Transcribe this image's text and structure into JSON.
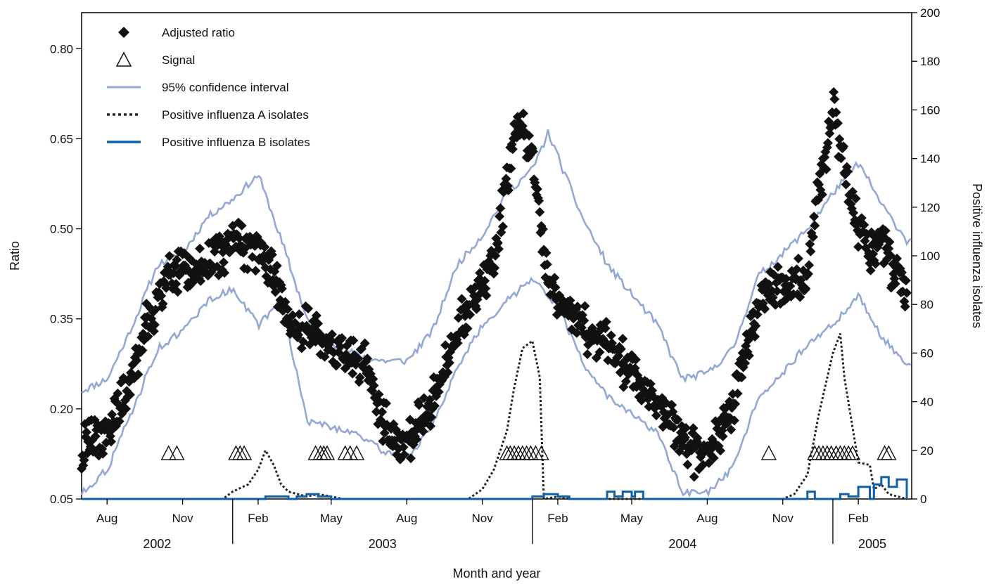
{
  "chart_data": {
    "type": "scatter",
    "xlabel": "Month and year",
    "ylabel": "Ratio",
    "ylabel_right": "Positive influenza isolates",
    "ylim": [
      0.05,
      0.86
    ],
    "ylim_right": [
      0,
      200
    ],
    "y_ticks": [
      "0.05",
      "0.20",
      "0.35",
      "0.50",
      "0.65",
      "0.80"
    ],
    "y_right_ticks": [
      "0",
      "20",
      "40",
      "60",
      "80",
      "100",
      "120",
      "140",
      "160",
      "180",
      "200"
    ],
    "x_tick_months": [
      "Aug",
      "Nov",
      "Feb",
      "May",
      "Aug",
      "Nov",
      "Feb",
      "May",
      "Aug",
      "Nov",
      "Feb"
    ],
    "x_tick_dates": [
      "2002-08-01",
      "2002-11-01",
      "2003-02-01",
      "2003-05-01",
      "2003-08-01",
      "2003-11-01",
      "2004-02-01",
      "2004-05-01",
      "2004-08-01",
      "2004-11-01",
      "2005-02-01"
    ],
    "x_range": [
      "2002-07-01",
      "2005-04-07"
    ],
    "years": [
      "2002",
      "2003",
      "2004",
      "2005"
    ],
    "legend": {
      "placement": "top-left",
      "entries": [
        "Adjusted ratio",
        "Signal",
        "95% confidence interval",
        "Positive influenza A isolates",
        "Positive influenza B isolates"
      ]
    },
    "colors": {
      "ratio": "#111111",
      "ci": "#93a8d3",
      "flu_a": "#222222",
      "flu_b": "#1060a8",
      "signal": "#111111"
    },
    "series": [
      {
        "name": "Adjusted ratio",
        "axis": "left",
        "style": "diamond",
        "points": [
          [
            "2002-07-01",
            0.13
          ],
          [
            "2002-07-15",
            0.15
          ],
          [
            "2002-08-01",
            0.16
          ],
          [
            "2002-08-15",
            0.2
          ],
          [
            "2002-09-01",
            0.25
          ],
          [
            "2002-09-15",
            0.32
          ],
          [
            "2002-10-01",
            0.38
          ],
          [
            "2002-10-15",
            0.42
          ],
          [
            "2002-11-01",
            0.43
          ],
          [
            "2002-11-15",
            0.43
          ],
          [
            "2002-12-01",
            0.44
          ],
          [
            "2002-12-15",
            0.46
          ],
          [
            "2003-01-01",
            0.48
          ],
          [
            "2003-01-15",
            0.47
          ],
          [
            "2003-02-01",
            0.47
          ],
          [
            "2003-02-15",
            0.44
          ],
          [
            "2003-03-01",
            0.38
          ],
          [
            "2003-03-15",
            0.33
          ],
          [
            "2003-04-01",
            0.33
          ],
          [
            "2003-04-15",
            0.32
          ],
          [
            "2003-05-01",
            0.3
          ],
          [
            "2003-05-15",
            0.29
          ],
          [
            "2003-06-01",
            0.28
          ],
          [
            "2003-06-15",
            0.27
          ],
          [
            "2003-07-01",
            0.18
          ],
          [
            "2003-07-15",
            0.15
          ],
          [
            "2003-08-01",
            0.15
          ],
          [
            "2003-08-15",
            0.17
          ],
          [
            "2003-09-01",
            0.21
          ],
          [
            "2003-09-15",
            0.26
          ],
          [
            "2003-10-01",
            0.33
          ],
          [
            "2003-10-15",
            0.37
          ],
          [
            "2003-11-01",
            0.4
          ],
          [
            "2003-11-15",
            0.45
          ],
          [
            "2003-12-01",
            0.58
          ],
          [
            "2003-12-15",
            0.68
          ],
          [
            "2004-01-01",
            0.62
          ],
          [
            "2004-01-15",
            0.45
          ],
          [
            "2004-02-01",
            0.38
          ],
          [
            "2004-02-15",
            0.37
          ],
          [
            "2004-03-01",
            0.34
          ],
          [
            "2004-03-15",
            0.32
          ],
          [
            "2004-04-01",
            0.31
          ],
          [
            "2004-04-15",
            0.28
          ],
          [
            "2004-05-01",
            0.26
          ],
          [
            "2004-05-15",
            0.24
          ],
          [
            "2004-06-01",
            0.21
          ],
          [
            "2004-06-15",
            0.18
          ],
          [
            "2004-07-01",
            0.15
          ],
          [
            "2004-07-15",
            0.13
          ],
          [
            "2004-08-01",
            0.14
          ],
          [
            "2004-08-15",
            0.16
          ],
          [
            "2004-09-01",
            0.2
          ],
          [
            "2004-09-15",
            0.28
          ],
          [
            "2004-10-01",
            0.36
          ],
          [
            "2004-10-15",
            0.4
          ],
          [
            "2004-11-01",
            0.41
          ],
          [
            "2004-11-15",
            0.4
          ],
          [
            "2004-12-01",
            0.44
          ],
          [
            "2004-12-15",
            0.56
          ],
          [
            "2005-01-01",
            0.7
          ],
          [
            "2005-01-15",
            0.6
          ],
          [
            "2005-02-01",
            0.5
          ],
          [
            "2005-02-15",
            0.46
          ],
          [
            "2005-03-01",
            0.49
          ],
          [
            "2005-03-15",
            0.43
          ],
          [
            "2005-04-01",
            0.39
          ]
        ]
      },
      {
        "name": "95% confidence interval",
        "axis": "left",
        "style": "line",
        "bound": "upper",
        "points": [
          [
            "2002-07-01",
            0.23
          ],
          [
            "2002-08-01",
            0.25
          ],
          [
            "2002-09-01",
            0.34
          ],
          [
            "2002-10-01",
            0.44
          ],
          [
            "2002-11-01",
            0.46
          ],
          [
            "2002-12-01",
            0.52
          ],
          [
            "2003-01-01",
            0.55
          ],
          [
            "2003-02-01",
            0.59
          ],
          [
            "2003-03-01",
            0.48
          ],
          [
            "2003-04-01",
            0.35
          ],
          [
            "2003-05-01",
            0.31
          ],
          [
            "2003-06-01",
            0.29
          ],
          [
            "2003-07-01",
            0.28
          ],
          [
            "2003-08-01",
            0.28
          ],
          [
            "2003-09-01",
            0.33
          ],
          [
            "2003-10-01",
            0.44
          ],
          [
            "2003-11-01",
            0.49
          ],
          [
            "2003-12-01",
            0.56
          ],
          [
            "2004-01-01",
            0.6
          ],
          [
            "2004-01-20",
            0.66
          ],
          [
            "2004-03-01",
            0.52
          ],
          [
            "2004-04-01",
            0.44
          ],
          [
            "2004-05-01",
            0.39
          ],
          [
            "2004-06-01",
            0.34
          ],
          [
            "2004-07-01",
            0.25
          ],
          [
            "2004-08-01",
            0.26
          ],
          [
            "2004-09-01",
            0.3
          ],
          [
            "2004-10-01",
            0.42
          ],
          [
            "2004-11-01",
            0.46
          ],
          [
            "2004-12-01",
            0.5
          ],
          [
            "2005-01-01",
            0.56
          ],
          [
            "2005-02-01",
            0.61
          ],
          [
            "2005-03-01",
            0.54
          ],
          [
            "2005-04-01",
            0.48
          ]
        ]
      },
      {
        "name": "95% confidence interval",
        "axis": "left",
        "style": "line",
        "bound": "lower",
        "points": [
          [
            "2002-07-01",
            0.06
          ],
          [
            "2002-08-01",
            0.1
          ],
          [
            "2002-09-01",
            0.2
          ],
          [
            "2002-10-01",
            0.3
          ],
          [
            "2002-11-01",
            0.33
          ],
          [
            "2002-12-01",
            0.38
          ],
          [
            "2003-01-01",
            0.4
          ],
          [
            "2003-02-01",
            0.34
          ],
          [
            "2003-03-01",
            0.38
          ],
          [
            "2003-04-01",
            0.18
          ],
          [
            "2003-05-01",
            0.17
          ],
          [
            "2003-06-01",
            0.16
          ],
          [
            "2003-07-01",
            0.13
          ],
          [
            "2003-08-01",
            0.12
          ],
          [
            "2003-09-01",
            0.17
          ],
          [
            "2003-10-01",
            0.27
          ],
          [
            "2003-11-01",
            0.34
          ],
          [
            "2003-12-01",
            0.38
          ],
          [
            "2004-01-01",
            0.42
          ],
          [
            "2004-02-01",
            0.37
          ],
          [
            "2004-03-01",
            0.28
          ],
          [
            "2004-04-01",
            0.22
          ],
          [
            "2004-05-01",
            0.19
          ],
          [
            "2004-06-01",
            0.16
          ],
          [
            "2004-07-01",
            0.06
          ],
          [
            "2004-08-01",
            0.06
          ],
          [
            "2004-09-01",
            0.1
          ],
          [
            "2004-10-01",
            0.22
          ],
          [
            "2004-11-01",
            0.26
          ],
          [
            "2004-12-01",
            0.31
          ],
          [
            "2005-01-01",
            0.34
          ],
          [
            "2005-02-01",
            0.39
          ],
          [
            "2005-03-01",
            0.32
          ],
          [
            "2005-04-01",
            0.27
          ]
        ]
      },
      {
        "name": "Positive influenza A isolates",
        "axis": "right",
        "style": "dotted",
        "points": [
          [
            "2002-07-01",
            0
          ],
          [
            "2002-12-20",
            0
          ],
          [
            "2003-01-01",
            3
          ],
          [
            "2003-01-20",
            6
          ],
          [
            "2003-02-01",
            12
          ],
          [
            "2003-02-10",
            20
          ],
          [
            "2003-02-20",
            14
          ],
          [
            "2003-03-01",
            6
          ],
          [
            "2003-03-10",
            3
          ],
          [
            "2003-04-01",
            1
          ],
          [
            "2003-04-15",
            2
          ],
          [
            "2003-05-01",
            1
          ],
          [
            "2003-05-15",
            0
          ],
          [
            "2003-10-15",
            0
          ],
          [
            "2003-11-01",
            4
          ],
          [
            "2003-11-15",
            12
          ],
          [
            "2003-12-01",
            28
          ],
          [
            "2003-12-10",
            46
          ],
          [
            "2003-12-20",
            62
          ],
          [
            "2004-01-01",
            65
          ],
          [
            "2004-01-10",
            50
          ],
          [
            "2004-01-15",
            0
          ],
          [
            "2004-02-01",
            1
          ],
          [
            "2004-02-15",
            0
          ],
          [
            "2004-11-01",
            0
          ],
          [
            "2004-11-15",
            2
          ],
          [
            "2004-12-01",
            10
          ],
          [
            "2004-12-15",
            35
          ],
          [
            "2005-01-01",
            60
          ],
          [
            "2005-01-10",
            68
          ],
          [
            "2005-01-15",
            50
          ],
          [
            "2005-02-01",
            15
          ],
          [
            "2005-02-15",
            14
          ],
          [
            "2005-02-20",
            4
          ],
          [
            "2005-03-01",
            6
          ],
          [
            "2005-03-10",
            2
          ],
          [
            "2005-04-01",
            0
          ]
        ]
      },
      {
        "name": "Positive influenza B isolates",
        "axis": "right",
        "style": "line",
        "points": [
          [
            "2002-07-01",
            0
          ],
          [
            "2003-02-01",
            0
          ],
          [
            "2003-02-10",
            1
          ],
          [
            "2003-03-01",
            1
          ],
          [
            "2003-03-10",
            0
          ],
          [
            "2003-03-20",
            1
          ],
          [
            "2003-04-01",
            2
          ],
          [
            "2003-04-15",
            1
          ],
          [
            "2003-05-01",
            0
          ],
          [
            "2003-12-15",
            0
          ],
          [
            "2004-01-01",
            1
          ],
          [
            "2004-01-15",
            2
          ],
          [
            "2004-02-01",
            1
          ],
          [
            "2004-02-15",
            0
          ],
          [
            "2004-03-25",
            0
          ],
          [
            "2004-04-01",
            3
          ],
          [
            "2004-04-10",
            1
          ],
          [
            "2004-04-20",
            3
          ],
          [
            "2004-05-01",
            1
          ],
          [
            "2004-05-05",
            3
          ],
          [
            "2004-05-15",
            0
          ],
          [
            "2004-11-20",
            0
          ],
          [
            "2004-12-01",
            3
          ],
          [
            "2004-12-10",
            0
          ],
          [
            "2005-01-01",
            0
          ],
          [
            "2005-01-10",
            2
          ],
          [
            "2005-01-20",
            1
          ],
          [
            "2005-02-01",
            5
          ],
          [
            "2005-02-15",
            0
          ],
          [
            "2005-02-20",
            6
          ],
          [
            "2005-03-01",
            9
          ],
          [
            "2005-03-10",
            5
          ],
          [
            "2005-03-20",
            8
          ],
          [
            "2005-04-01",
            0
          ]
        ]
      }
    ],
    "signals": [
      "2002-10-15",
      "2002-10-25",
      "2003-01-05",
      "2003-01-10",
      "2003-01-15",
      "2003-04-12",
      "2003-04-18",
      "2003-04-22",
      "2003-04-26",
      "2003-05-18",
      "2003-05-24",
      "2003-06-01",
      "2003-12-01",
      "2003-12-05",
      "2003-12-10",
      "2003-12-15",
      "2003-12-20",
      "2003-12-25",
      "2003-12-30",
      "2004-01-05",
      "2004-01-12",
      "2004-10-15",
      "2004-12-10",
      "2004-12-15",
      "2004-12-20",
      "2004-12-25",
      "2004-12-30",
      "2005-01-05",
      "2005-01-10",
      "2005-01-15",
      "2005-01-20",
      "2005-01-25",
      "2005-03-05",
      "2005-03-10"
    ],
    "signal_ratio": 0.125
  }
}
